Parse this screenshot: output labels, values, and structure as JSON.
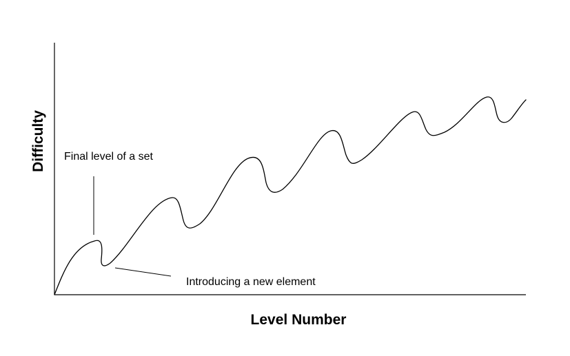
{
  "diagram": {
    "x_axis_label": "Level Number",
    "y_axis_label": "Difficulty",
    "annotations": {
      "peak": "Final level of a set",
      "dip": "Introducing a new element"
    },
    "colors": {
      "line": "#000000",
      "axis": "#000000",
      "leader": "#000000",
      "background": "#ffffff"
    }
  }
}
